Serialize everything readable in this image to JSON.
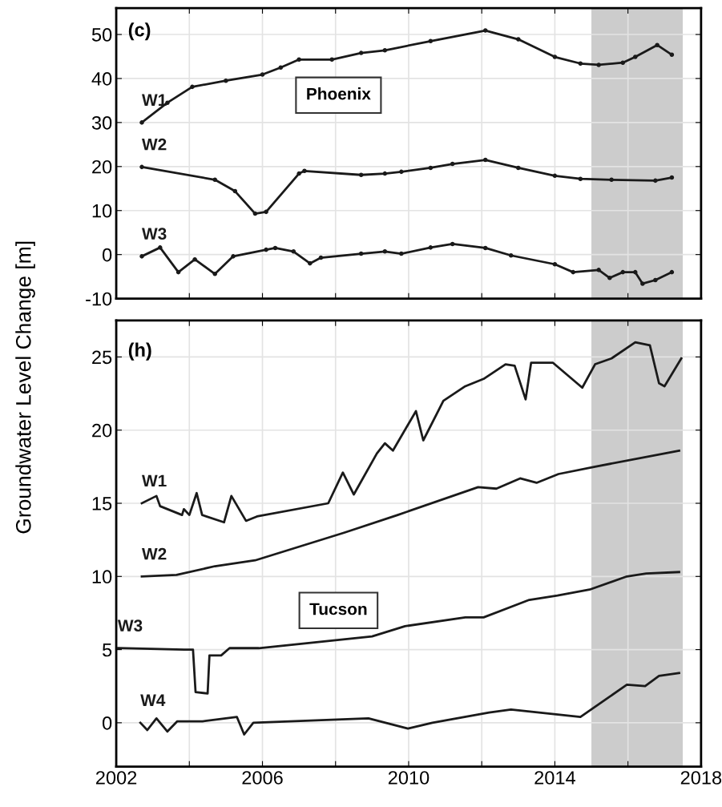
{
  "chart_data": [
    {
      "type": "line",
      "ylabel": "Groundwater Level Change [m]",
      "annotations": [
        "(c)",
        "Phoenix"
      ],
      "xlim": [
        2002,
        2018
      ],
      "ylim": [
        -10,
        56
      ],
      "xticks": [
        {
          "value": 2002,
          "label": null
        },
        {
          "value": 2004,
          "label": null
        },
        {
          "value": 2006,
          "label": null
        },
        {
          "value": 2008,
          "label": null
        },
        {
          "value": 2010,
          "label": null
        },
        {
          "value": 2012,
          "label": null
        },
        {
          "value": 2014,
          "label": null
        },
        {
          "value": 2016,
          "label": null
        },
        {
          "value": 2018,
          "label": null
        }
      ],
      "yticks": [
        -10,
        0,
        10,
        20,
        30,
        40,
        50
      ],
      "tick_labels": "y",
      "grid": true,
      "marker": "circle",
      "line_style": "solid",
      "bands": [
        {
          "axis": "x",
          "from": 2015,
          "to": 2017.5,
          "color": "#cccccc"
        }
      ],
      "series": [
        {
          "name": "W1",
          "color": "#1a1a1a",
          "x": [
            2002.7,
            2003.4,
            2004.08,
            2005,
            2006,
            2006.5,
            2007,
            2007.9,
            2008.7,
            2009.35,
            2010.6,
            2012.1,
            2013,
            2014,
            2014.7,
            2015.2,
            2015.86,
            2016.2,
            2016.8,
            2017.2
          ],
          "values": [
            30,
            34.5,
            38.1,
            39.5,
            40.9,
            42.5,
            44.3,
            44.3,
            45.8,
            46.4,
            48.5,
            50.9,
            48.9,
            44.9,
            43.4,
            43.1,
            43.6,
            44.9,
            47.6,
            45.4
          ]
        },
        {
          "name": "W2",
          "color": "#1a1a1a",
          "x": [
            2002.7,
            2004.7,
            2005.25,
            2005.8,
            2006.1,
            2007,
            2007.15,
            2008.7,
            2009.35,
            2009.8,
            2010.6,
            2011.2,
            2012.1,
            2013,
            2014,
            2014.7,
            2015.55,
            2016.75,
            2017.2
          ],
          "values": [
            19.9,
            17,
            14.4,
            9.3,
            9.7,
            18.4,
            19,
            18.1,
            18.4,
            18.8,
            19.7,
            20.6,
            21.5,
            19.7,
            17.9,
            17.2,
            17,
            16.8,
            17.5
          ]
        },
        {
          "name": "W3",
          "color": "#1a1a1a",
          "x": [
            2002.7,
            2003.2,
            2003.7,
            2004.15,
            2004.7,
            2005.2,
            2006.1,
            2006.35,
            2006.85,
            2007.3,
            2007.6,
            2008.7,
            2009.35,
            2009.8,
            2010.6,
            2011.2,
            2012.1,
            2012.8,
            2014,
            2014.5,
            2015.2,
            2015.5,
            2015.86,
            2016.2,
            2016.4,
            2016.75,
            2017.2
          ],
          "values": [
            -0.4,
            1.6,
            -4,
            -1.1,
            -4.4,
            -0.4,
            1.1,
            1.5,
            0.7,
            -2,
            -0.7,
            0.2,
            0.7,
            0.2,
            1.6,
            2.4,
            1.5,
            -0.2,
            -2.2,
            -4,
            -3.5,
            -5.3,
            -4,
            -4,
            -6.6,
            -5.8,
            -4
          ]
        }
      ]
    },
    {
      "type": "line",
      "annotations": [
        "(h)",
        "Tucson"
      ],
      "xlim": [
        2002,
        2018
      ],
      "ylim": [
        -3,
        27.5
      ],
      "xticks": [
        2002,
        {
          "value": 2004,
          "label": null
        },
        2006,
        {
          "value": 2008,
          "label": null
        },
        2010,
        {
          "value": 2012,
          "label": null
        },
        2014,
        {
          "value": 2016,
          "label": null
        },
        2018
      ],
      "yticks": [
        0,
        5,
        10,
        15,
        20,
        25
      ],
      "grid": true,
      "marker": "none",
      "line_style": "solid",
      "bands": [
        {
          "axis": "x",
          "from": 2015,
          "to": 2017.5,
          "color": "#cccccc"
        }
      ],
      "series": [
        {
          "name": "W1",
          "color": "#1a1a1a",
          "x": [
            2002.7,
            2003.1,
            2003.2,
            2003.8,
            2003.85,
            2004,
            2004.2,
            2004.35,
            2004.95,
            2005.15,
            2005.55,
            2005.85,
            2007.8,
            2008.2,
            2008.5,
            2009.13,
            2009.35,
            2009.57,
            2010.2,
            2010.4,
            2010.95,
            2011.55,
            2012.05,
            2012.65,
            2012.9,
            2013.2,
            2013.35,
            2013.95,
            2014.75,
            2015.1,
            2015.55,
            2016.2,
            2016.6,
            2016.85,
            2017,
            2017.46
          ],
          "values": [
            15,
            15.5,
            14.8,
            14.2,
            14.6,
            14.2,
            15.7,
            14.2,
            13.7,
            15.5,
            13.8,
            14.1,
            15,
            17.1,
            15.6,
            18.4,
            19.1,
            18.6,
            21.3,
            19.3,
            22,
            23,
            23.5,
            24.5,
            24.4,
            22.1,
            24.6,
            24.6,
            22.9,
            24.5,
            24.9,
            26,
            25.8,
            23.2,
            23,
            24.9
          ]
        },
        {
          "name": "W2",
          "color": "#1a1a1a",
          "x": [
            2002.7,
            2003.65,
            2004.7,
            2005.8,
            2008.25,
            2009.7,
            2011.9,
            2012.4,
            2013.05,
            2013.5,
            2014.1,
            2015.1,
            2017.4
          ],
          "values": [
            10,
            10.1,
            10.7,
            11.1,
            13,
            14.2,
            16.1,
            16,
            16.7,
            16.4,
            17,
            17.5,
            18.6
          ]
        },
        {
          "name": "W3",
          "color": "#1a1a1a",
          "x": [
            2002.04,
            2003.86,
            2004.1,
            2004.17,
            2004.5,
            2004.55,
            2004.87,
            2005.1,
            2005.9,
            2009,
            2009.9,
            2011.55,
            2012.05,
            2013.3,
            2014.07,
            2014.95,
            2015.97,
            2016.5,
            2017.4
          ],
          "values": [
            5.1,
            5,
            5,
            2.1,
            2,
            4.6,
            4.6,
            5.1,
            5.1,
            5.9,
            6.6,
            7.2,
            7.2,
            8.4,
            8.7,
            9.1,
            10,
            10.2,
            10.3
          ]
        },
        {
          "name": "W4",
          "color": "#1a1a1a",
          "x": [
            2002.66,
            2002.85,
            2003.1,
            2003.4,
            2003.67,
            2004.36,
            2005.3,
            2005.5,
            2005.75,
            2008.9,
            2009.98,
            2010.65,
            2012.2,
            2012.8,
            2014.7,
            2015.45,
            2015.97,
            2016.47,
            2016.85,
            2017.4
          ],
          "values": [
            0,
            -0.5,
            0.3,
            -0.6,
            0.1,
            0.1,
            0.4,
            -0.8,
            0,
            0.3,
            -0.4,
            0,
            0.7,
            0.9,
            0.4,
            1.7,
            2.6,
            2.5,
            3.2,
            3.4
          ]
        }
      ]
    }
  ]
}
